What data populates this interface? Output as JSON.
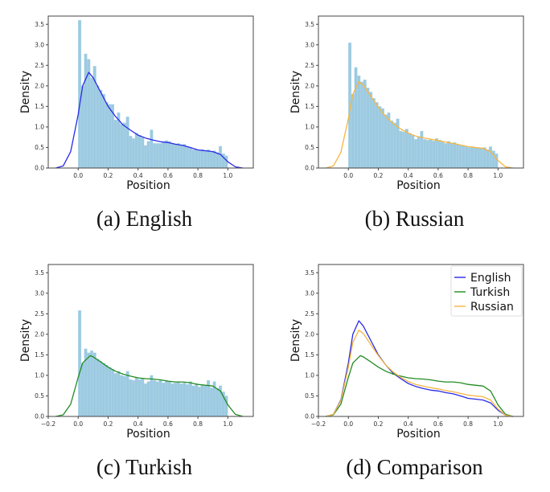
{
  "colors": {
    "histogram": "#9ccae1",
    "English": "#2a2ae6",
    "Russian": "#f5b640",
    "Turkish": "#228b22",
    "axes": "#444444"
  },
  "chart_data": [
    {
      "type": "bar+line",
      "caption": "(a) English",
      "xlabel": "Position",
      "ylabel": "Density",
      "xlim": [
        -0.2,
        1.17
      ],
      "ylim": [
        0,
        3.7
      ],
      "xticks": [
        "0.0",
        "0.2",
        "0.4",
        "0.6",
        "0.8",
        "1.0"
      ],
      "yticks": [
        "0.0",
        "0.5",
        "1.0",
        "1.5",
        "2.0",
        "2.5",
        "3.0",
        "3.5"
      ],
      "hist_bins": [
        0,
        1,
        50
      ],
      "hist": [
        3.6,
        2.0,
        2.78,
        2.65,
        2.2,
        2.48,
        2.0,
        1.9,
        1.8,
        1.6,
        1.55,
        1.55,
        1.17,
        1.35,
        1.07,
        1.1,
        1.25,
        0.78,
        0.72,
        0.85,
        0.8,
        0.75,
        0.55,
        0.65,
        0.93,
        0.6,
        0.6,
        0.6,
        0.62,
        0.67,
        0.65,
        0.6,
        0.58,
        0.6,
        0.55,
        0.58,
        0.52,
        0.5,
        0.45,
        0.45,
        0.42,
        0.45,
        0.42,
        0.45,
        0.4,
        0.42,
        0.38,
        0.53,
        0.35,
        0.3
      ],
      "kde": {
        "name": "English",
        "x": [
          -0.15,
          -0.1,
          -0.05,
          0,
          0.03,
          0.07,
          0.1,
          0.15,
          0.2,
          0.25,
          0.3,
          0.35,
          0.4,
          0.45,
          0.5,
          0.55,
          0.6,
          0.65,
          0.7,
          0.75,
          0.8,
          0.85,
          0.9,
          0.95,
          1.0,
          1.05,
          1.1
        ],
        "y": [
          0,
          0.05,
          0.4,
          1.3,
          2.0,
          2.33,
          2.2,
          1.85,
          1.5,
          1.25,
          1.05,
          0.92,
          0.8,
          0.73,
          0.68,
          0.64,
          0.62,
          0.58,
          0.55,
          0.5,
          0.44,
          0.42,
          0.4,
          0.33,
          0.15,
          0.03,
          0
        ]
      }
    },
    {
      "type": "bar+line",
      "caption": "(b) Russian",
      "xlabel": "Position",
      "ylabel": "Density",
      "xlim": [
        -0.2,
        1.17
      ],
      "ylim": [
        0,
        3.7
      ],
      "xticks": [
        "0.0",
        "0.2",
        "0.4",
        "0.6",
        "0.8",
        "1.0"
      ],
      "yticks": [
        "0.0",
        "0.5",
        "1.0",
        "1.5",
        "2.0",
        "2.5",
        "3.0",
        "3.5"
      ],
      "hist_bins": [
        0,
        1,
        50
      ],
      "hist": [
        3.05,
        1.8,
        2.45,
        2.25,
        2.1,
        2.15,
        1.95,
        1.85,
        1.7,
        1.6,
        1.5,
        1.45,
        1.3,
        1.35,
        1.15,
        1.1,
        1.2,
        0.9,
        0.88,
        0.95,
        0.85,
        0.8,
        0.7,
        0.75,
        0.9,
        0.7,
        0.68,
        0.7,
        0.66,
        0.72,
        0.68,
        0.64,
        0.6,
        0.65,
        0.6,
        0.62,
        0.58,
        0.55,
        0.55,
        0.52,
        0.5,
        0.52,
        0.5,
        0.5,
        0.48,
        0.5,
        0.45,
        0.52,
        0.42,
        0.35
      ],
      "kde": {
        "name": "Russian",
        "x": [
          -0.15,
          -0.1,
          -0.05,
          0,
          0.03,
          0.07,
          0.1,
          0.15,
          0.2,
          0.25,
          0.3,
          0.35,
          0.4,
          0.45,
          0.5,
          0.55,
          0.6,
          0.65,
          0.7,
          0.75,
          0.8,
          0.85,
          0.9,
          0.95,
          1.0,
          1.05,
          1.1
        ],
        "y": [
          0,
          0.05,
          0.38,
          1.2,
          1.8,
          2.1,
          2.02,
          1.75,
          1.48,
          1.25,
          1.08,
          0.95,
          0.85,
          0.78,
          0.74,
          0.7,
          0.67,
          0.63,
          0.6,
          0.56,
          0.52,
          0.5,
          0.48,
          0.4,
          0.18,
          0.03,
          0
        ]
      }
    },
    {
      "type": "bar+line",
      "caption": "(c) Turkish",
      "xlabel": "Position",
      "ylabel": "Density",
      "xlim": [
        -0.2,
        1.17
      ],
      "ylim": [
        0,
        3.7
      ],
      "xticks": [
        "−0.2",
        "0.0",
        "0.2",
        "0.4",
        "0.6",
        "0.8",
        "1.0"
      ],
      "yticks": [
        "0.0",
        "0.5",
        "1.0",
        "1.5",
        "2.0",
        "2.5",
        "3.0",
        "3.5"
      ],
      "hist_bins": [
        0,
        1,
        50
      ],
      "hist": [
        2.58,
        1.3,
        1.65,
        1.55,
        1.6,
        1.55,
        1.4,
        1.35,
        1.3,
        1.25,
        1.2,
        1.15,
        1.05,
        1.1,
        1.0,
        0.98,
        1.1,
        0.9,
        0.88,
        0.95,
        0.9,
        0.92,
        0.8,
        0.85,
        1.0,
        0.88,
        0.85,
        0.9,
        0.82,
        0.88,
        0.85,
        0.8,
        0.82,
        0.85,
        0.8,
        0.82,
        0.78,
        0.85,
        0.75,
        0.8,
        0.72,
        0.78,
        0.75,
        0.88,
        0.7,
        0.85,
        0.68,
        0.75,
        0.6,
        0.5
      ],
      "kde": {
        "name": "Turkish",
        "x": [
          -0.15,
          -0.1,
          -0.05,
          0,
          0.03,
          0.08,
          0.1,
          0.15,
          0.2,
          0.25,
          0.3,
          0.35,
          0.4,
          0.45,
          0.5,
          0.55,
          0.6,
          0.65,
          0.7,
          0.75,
          0.8,
          0.85,
          0.9,
          0.95,
          1.0,
          1.05,
          1.1
        ],
        "y": [
          0,
          0.04,
          0.3,
          0.95,
          1.3,
          1.48,
          1.45,
          1.33,
          1.2,
          1.1,
          1.03,
          0.98,
          0.94,
          0.92,
          0.91,
          0.89,
          0.86,
          0.84,
          0.84,
          0.82,
          0.78,
          0.76,
          0.74,
          0.62,
          0.28,
          0.05,
          0
        ]
      }
    },
    {
      "type": "line",
      "caption": "(d) Comparison",
      "xlabel": "Position",
      "ylabel": "Density",
      "xlim": [
        -0.2,
        1.17
      ],
      "ylim": [
        0,
        3.7
      ],
      "xticks": [
        "−0.2",
        "0.0",
        "0.2",
        "0.4",
        "0.6",
        "0.8",
        "1.0"
      ],
      "yticks": [
        "0.0",
        "0.5",
        "1.0",
        "1.5",
        "2.0",
        "2.5",
        "3.0",
        "3.5"
      ],
      "legend": {
        "placement": "upper-right",
        "entries": [
          "English",
          "Turkish",
          "Russian"
        ]
      },
      "series_from_panels": [
        "English",
        "Turkish",
        "Russian"
      ]
    }
  ]
}
